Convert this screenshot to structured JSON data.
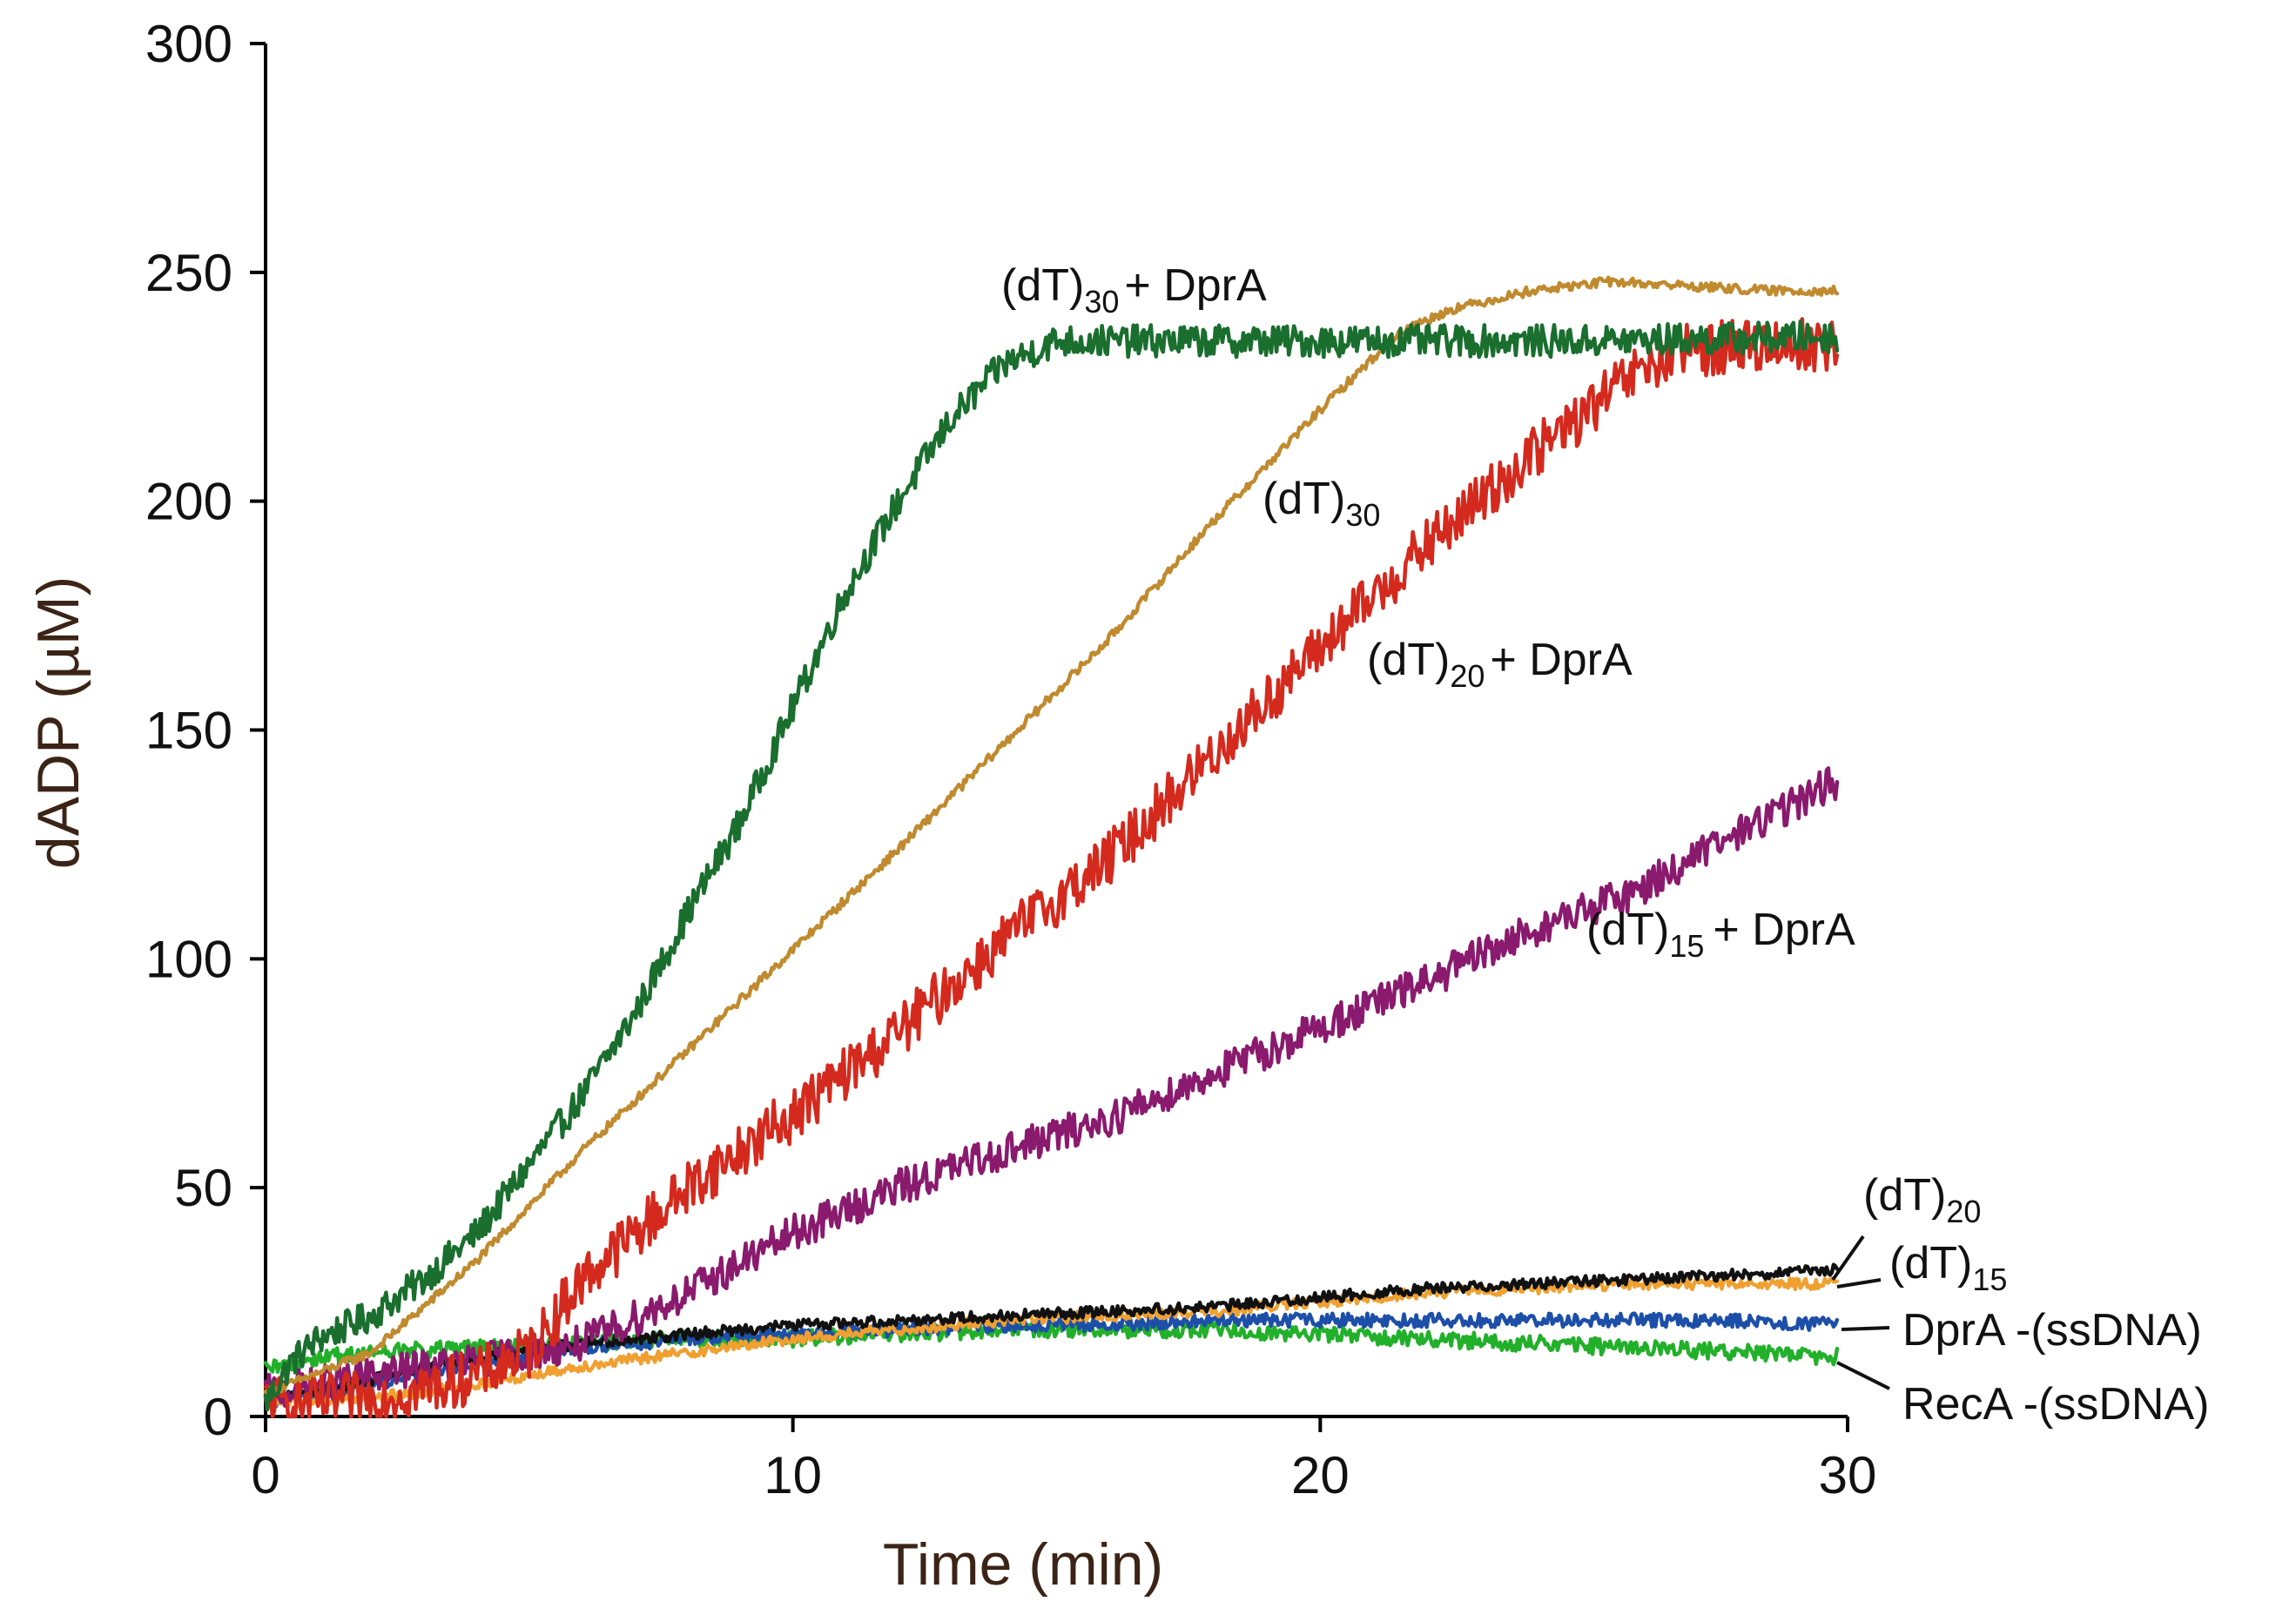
{
  "chart_data": {
    "type": "line",
    "title": "",
    "xlabel": "Time (min)",
    "ylabel": "dADP (µM)",
    "xlim": [
      0,
      30
    ],
    "ylim": [
      0,
      300
    ],
    "x_ticks": [
      "0",
      "10",
      "20",
      "30"
    ],
    "y_ticks": [
      "0",
      "50",
      "100",
      "150",
      "200",
      "250",
      "300"
    ],
    "grid": false,
    "series": [
      {
        "name": "(dT)30 + DprA",
        "color": "#1a6e2e",
        "noise": 3.5,
        "points": [
          [
            0,
            3
          ],
          [
            0.5,
            12
          ],
          [
            1,
            17
          ],
          [
            2,
            22
          ],
          [
            3,
            30
          ],
          [
            4,
            40
          ],
          [
            5,
            55
          ],
          [
            6,
            70
          ],
          [
            7,
            88
          ],
          [
            8,
            110
          ],
          [
            9,
            130
          ],
          [
            10,
            155
          ],
          [
            11,
            180
          ],
          [
            12,
            200
          ],
          [
            13,
            218
          ],
          [
            14,
            230
          ],
          [
            15,
            235
          ],
          [
            17,
            235
          ],
          [
            20,
            235
          ],
          [
            25,
            235
          ],
          [
            29.8,
            236
          ]
        ]
      },
      {
        "name": "(dT)30",
        "color": "#c08a2e",
        "noise": 1.0,
        "points": [
          [
            0,
            5
          ],
          [
            2,
            14
          ],
          [
            4,
            34
          ],
          [
            6,
            58
          ],
          [
            8,
            80
          ],
          [
            10,
            102
          ],
          [
            12,
            124
          ],
          [
            14,
            147
          ],
          [
            16,
            170
          ],
          [
            18,
            196
          ],
          [
            20,
            220
          ],
          [
            21.5,
            237
          ],
          [
            22.5,
            242
          ],
          [
            24,
            246
          ],
          [
            25.5,
            248
          ],
          [
            27,
            247
          ],
          [
            28.5,
            246
          ],
          [
            29.8,
            246
          ]
        ]
      },
      {
        "name": "(dT)20 + DprA",
        "color": "#d42a1e",
        "noise": 6.0,
        "points": [
          [
            0,
            3
          ],
          [
            1,
            3
          ],
          [
            2,
            4
          ],
          [
            3,
            6
          ],
          [
            4,
            9
          ],
          [
            5,
            14
          ],
          [
            6,
            30
          ],
          [
            7,
            40
          ],
          [
            8,
            50
          ],
          [
            10,
            66
          ],
          [
            12,
            84
          ],
          [
            14,
            104
          ],
          [
            16,
            122
          ],
          [
            18,
            145
          ],
          [
            20,
            168
          ],
          [
            22,
            190
          ],
          [
            24,
            210
          ],
          [
            26,
            228
          ],
          [
            27,
            233
          ],
          [
            28,
            234
          ],
          [
            29.8,
            234
          ]
        ]
      },
      {
        "name": "(dT)15 + DprA",
        "color": "#8a1a6e",
        "noise": 4.0,
        "points": [
          [
            0,
            5
          ],
          [
            2,
            9
          ],
          [
            4,
            12
          ],
          [
            6,
            16
          ],
          [
            8,
            27
          ],
          [
            10,
            40
          ],
          [
            12,
            50
          ],
          [
            14,
            58
          ],
          [
            16,
            65
          ],
          [
            18,
            75
          ],
          [
            20,
            85
          ],
          [
            22,
            95
          ],
          [
            24,
            106
          ],
          [
            26,
            115
          ],
          [
            28,
            128
          ],
          [
            29.8,
            139
          ]
        ]
      },
      {
        "name": "(dT)20",
        "color": "#111111",
        "noise": 1.2,
        "points": [
          [
            0,
            4
          ],
          [
            2,
            8
          ],
          [
            4,
            13
          ],
          [
            6,
            16
          ],
          [
            8,
            18
          ],
          [
            10,
            20
          ],
          [
            12,
            21
          ],
          [
            14,
            22
          ],
          [
            16,
            23
          ],
          [
            18,
            24
          ],
          [
            20,
            26
          ],
          [
            22,
            28
          ],
          [
            24,
            29
          ],
          [
            26,
            30
          ],
          [
            28,
            31
          ],
          [
            29.8,
            32
          ]
        ]
      },
      {
        "name": "(dT)15",
        "color": "#f0a030",
        "noise": 1.2,
        "points": [
          [
            0,
            3
          ],
          [
            2,
            4
          ],
          [
            4,
            7
          ],
          [
            6,
            11
          ],
          [
            8,
            14
          ],
          [
            10,
            17
          ],
          [
            12,
            19
          ],
          [
            14,
            21
          ],
          [
            16,
            22
          ],
          [
            18,
            23
          ],
          [
            20,
            25
          ],
          [
            22,
            27
          ],
          [
            24,
            28
          ],
          [
            26,
            29
          ],
          [
            28,
            29
          ],
          [
            29.8,
            29
          ]
        ]
      },
      {
        "name": "DprA -(ssDNA)",
        "color": "#1d4fa8",
        "noise": 1.5,
        "points": [
          [
            0,
            3
          ],
          [
            2,
            7
          ],
          [
            4,
            12
          ],
          [
            6,
            15
          ],
          [
            8,
            17
          ],
          [
            10,
            18
          ],
          [
            12,
            19
          ],
          [
            14,
            20
          ],
          [
            16,
            20
          ],
          [
            18,
            21
          ],
          [
            20,
            21
          ],
          [
            22,
            21
          ],
          [
            24,
            21
          ],
          [
            26,
            21
          ],
          [
            28,
            21
          ],
          [
            29.8,
            20
          ]
        ]
      },
      {
        "name": "RecA -(ssDNA)",
        "color": "#22b02a",
        "noise": 1.8,
        "points": [
          [
            0,
            10
          ],
          [
            1,
            13
          ],
          [
            2,
            14
          ],
          [
            4,
            15
          ],
          [
            6,
            16
          ],
          [
            8,
            17
          ],
          [
            10,
            17
          ],
          [
            12,
            18
          ],
          [
            14,
            19
          ],
          [
            16,
            19
          ],
          [
            18,
            19
          ],
          [
            20,
            18
          ],
          [
            22,
            17
          ],
          [
            24,
            16
          ],
          [
            26,
            15
          ],
          [
            28,
            14
          ],
          [
            29.8,
            13
          ]
        ]
      }
    ],
    "annotations": [
      {
        "id": "dt30-dpra",
        "base": "(dT)",
        "sub": "30",
        "tail": "+ DprA"
      },
      {
        "id": "dt30",
        "base": "(dT)",
        "sub": "30",
        "tail": ""
      },
      {
        "id": "dt20-dpra",
        "base": "(dT)",
        "sub": "20",
        "tail": "+ DprA"
      },
      {
        "id": "dt15-dpra",
        "base": "(dT)",
        "sub": "15",
        "tail": "+ DprA"
      },
      {
        "id": "dt20",
        "base": "(dT)",
        "sub": "20",
        "tail": ""
      },
      {
        "id": "dt15",
        "base": "(dT)",
        "sub": "15",
        "tail": ""
      },
      {
        "id": "dpra-ssdna",
        "base": "DprA -(ssDNA)",
        "sub": "",
        "tail": ""
      },
      {
        "id": "reca-ssdna",
        "base": "RecA -(ssDNA)",
        "sub": "",
        "tail": ""
      }
    ]
  }
}
